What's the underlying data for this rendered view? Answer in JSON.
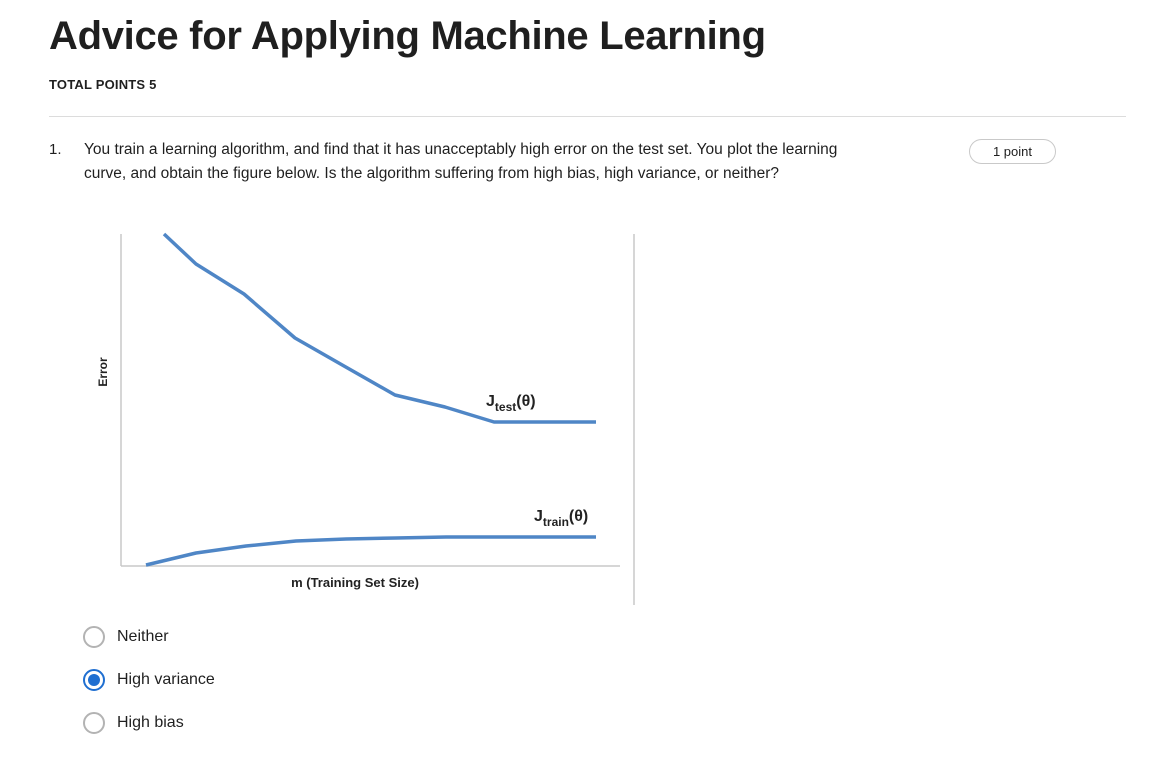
{
  "quiz": {
    "title": "Advice for Applying Machine Learning",
    "total_points": "TOTAL POINTS 5"
  },
  "question": {
    "number": "1.",
    "text": "You train a learning algorithm, and find that it has unacceptably high error on the test set. You plot the learning curve, and obtain the figure below. Is the algorithm suffering from high bias, high variance, or neither?",
    "points": "1 point"
  },
  "figure": {
    "y_axis_label": "Error",
    "x_axis_label": "m (Training Set Size)",
    "test_curve_label": {
      "main": "J",
      "sub": "test",
      "arg": "(θ)"
    },
    "train_curve_label": {
      "main": "J",
      "sub": "train",
      "arg": "(θ)"
    },
    "line_color": "#4f86c6"
  },
  "options": [
    {
      "label": "Neither",
      "selected": false
    },
    {
      "label": "High variance",
      "selected": true
    },
    {
      "label": "High bias",
      "selected": false
    }
  ],
  "colors": {
    "accent": "#1f6fd1",
    "radio_border": "#b3b3b3",
    "divider": "#dcdcdc"
  }
}
